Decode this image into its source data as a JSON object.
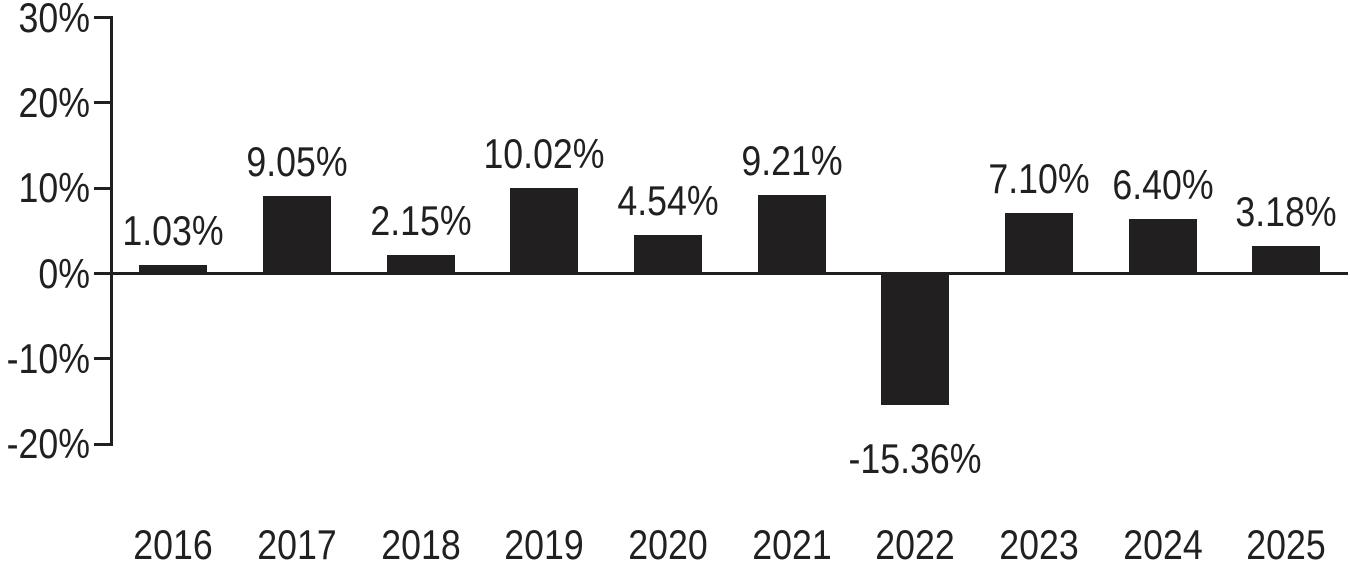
{
  "chart_data": {
    "type": "bar",
    "title": "",
    "xlabel": "",
    "ylabel": "",
    "categories": [
      "2016",
      "2017",
      "2018",
      "2019",
      "2020",
      "2021",
      "2022",
      "2023",
      "2024",
      "2025"
    ],
    "values": [
      1.03,
      9.05,
      2.15,
      10.02,
      4.54,
      9.21,
      -15.36,
      7.1,
      6.4,
      3.18
    ],
    "value_labels": [
      "1.03%",
      "9.05%",
      "2.15%",
      "10.02%",
      "4.54%",
      "9.21%",
      "-15.36%",
      "7.10%",
      "6.40%",
      "3.18%"
    ],
    "y_ticks": [
      {
        "value": 30,
        "label": "30%"
      },
      {
        "value": 20,
        "label": "20%"
      },
      {
        "value": 10,
        "label": "10%"
      },
      {
        "value": 0,
        "label": "0%"
      },
      {
        "value": -10,
        "label": "-10%"
      },
      {
        "value": -20,
        "label": "-20%"
      }
    ],
    "ylim": [
      -20,
      30
    ],
    "grid": false,
    "legend": false,
    "bar_color": "#221f20",
    "axis_color": "#221f20",
    "text_color": "#221f20",
    "background_color": "#ffffff"
  }
}
